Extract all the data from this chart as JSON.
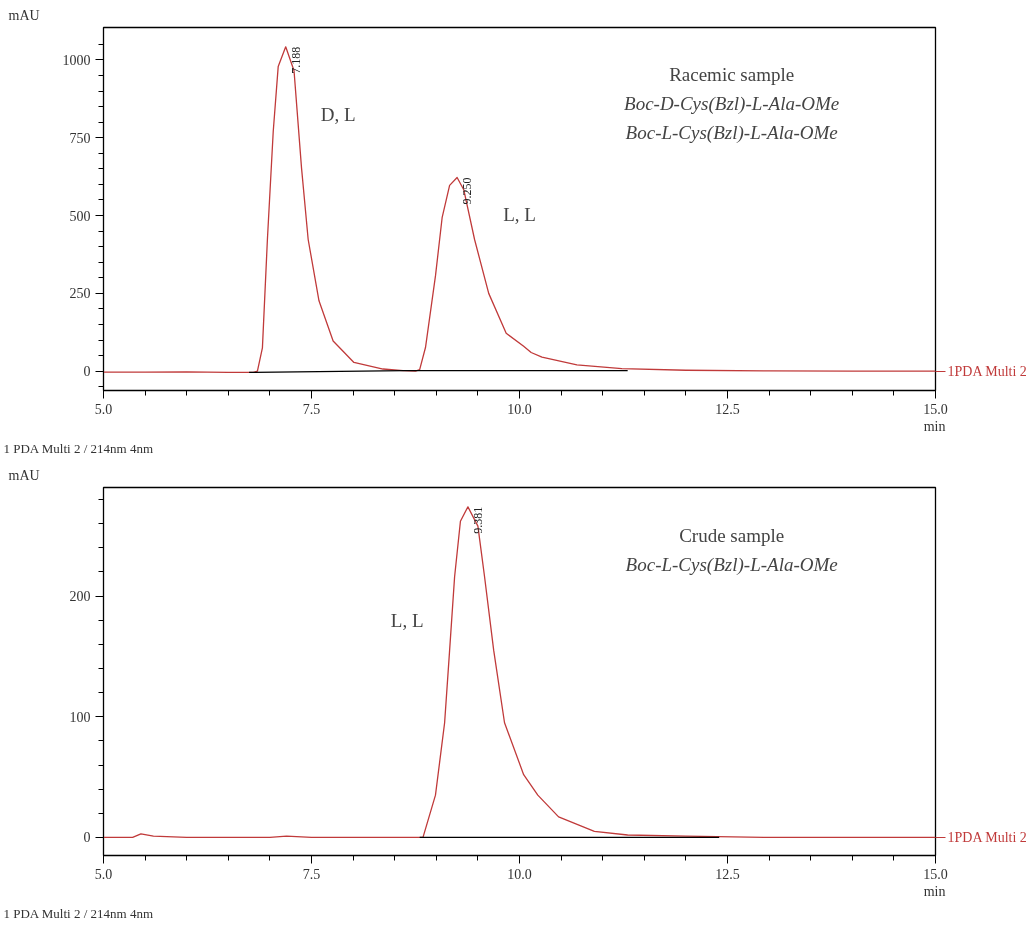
{
  "chart_data": [
    {
      "type": "line",
      "xlabel": "min",
      "ylabel": "mAU",
      "xlim": [
        5,
        15
      ],
      "ylim": [
        -62,
        1104
      ],
      "xticks": [
        {
          "value": 5,
          "label": "5.0"
        },
        {
          "value": 5.5,
          "label": null
        },
        {
          "value": 6.0,
          "label": null
        },
        {
          "value": 6.5,
          "label": null
        },
        {
          "value": 7.0,
          "label": null
        },
        {
          "value": 7.5,
          "label": "7.5"
        },
        {
          "value": 8.0,
          "label": null
        },
        {
          "value": 8.5,
          "label": null
        },
        {
          "value": 9.0,
          "label": null
        },
        {
          "value": 9.5,
          "label": null
        },
        {
          "value": 10,
          "label": "10.0"
        },
        {
          "value": 10.5,
          "label": null
        },
        {
          "value": 11.0,
          "label": null
        },
        {
          "value": 11.5,
          "label": null
        },
        {
          "value": 12.0,
          "label": null
        },
        {
          "value": 12.5,
          "label": "12.5"
        },
        {
          "value": 13.0,
          "label": null
        },
        {
          "value": 13.5,
          "label": null
        },
        {
          "value": 14.0,
          "label": null
        },
        {
          "value": 14.5,
          "label": null
        },
        {
          "value": 15,
          "label": "15.0"
        }
      ],
      "yticks": [
        {
          "value": -50,
          "label": null
        },
        0,
        {
          "value": 50,
          "label": null
        },
        {
          "value": 100,
          "label": null
        },
        {
          "value": 150,
          "label": null
        },
        {
          "value": 200,
          "label": null
        },
        250,
        {
          "value": 300,
          "label": null
        },
        {
          "value": 350,
          "label": null
        },
        {
          "value": 400,
          "label": null
        },
        {
          "value": 450,
          "label": null
        },
        500,
        {
          "value": 550,
          "label": null
        },
        {
          "value": 600,
          "label": null
        },
        {
          "value": 650,
          "label": null
        },
        {
          "value": 700,
          "label": null
        },
        750,
        {
          "value": 800,
          "label": null
        },
        {
          "value": 850,
          "label": null
        },
        {
          "value": 900,
          "label": null
        },
        {
          "value": 950,
          "label": null
        },
        1000,
        {
          "value": 1050,
          "label": null
        }
      ],
      "series": [
        {
          "name": "1PDA Multi 2",
          "color": "#c03a3a",
          "x": [
            5.0,
            5.5,
            6.0,
            6.5,
            6.8,
            6.85,
            6.91,
            6.97,
            7.04,
            7.1,
            7.19,
            7.29,
            7.38,
            7.46,
            7.59,
            7.76,
            8.01,
            8.36,
            8.6,
            8.75,
            8.8,
            8.87,
            8.99,
            9.07,
            9.16,
            9.25,
            9.33,
            9.46,
            9.63,
            9.84,
            10.05,
            10.14,
            10.27,
            10.69,
            11.23,
            12.0,
            13.0,
            14.0,
            15.0
          ],
          "values": [
            -3,
            -3,
            -2,
            -4,
            -4,
            0,
            75,
            423,
            770,
            979,
            1042,
            965,
            653,
            423,
            226,
            97,
            28,
            7,
            2,
            0,
            5,
            76,
            306,
            493,
            597,
            622,
            583,
            423,
            250,
            122,
            80,
            60,
            45,
            20,
            8,
            3,
            1,
            0,
            0
          ]
        },
        {
          "color": "#000000",
          "x": [
            6.75,
            8.62,
            11.3
          ],
          "values": [
            -4,
            2,
            2
          ]
        }
      ],
      "annotations": [
        {
          "text": "7.188",
          "x": 7.19,
          "y": 1042
        },
        {
          "text": "9.250",
          "x": 9.25,
          "y": 622
        },
        "D, L",
        "L, L",
        "Racemic sample",
        "Boc-D-Cys(Bzl)-L-Ala-OMe",
        "Boc-L-Cys(Bzl)-L-Ala-OMe",
        "1 PDA Multi 2 / 214nm 4nm"
      ]
    },
    {
      "type": "line",
      "xlabel": "min",
      "ylabel": "mAU",
      "xlim": [
        5,
        15
      ],
      "ylim": [
        -15,
        290
      ],
      "xticks": [
        {
          "value": 5,
          "label": "5.0"
        },
        {
          "value": 5.5,
          "label": null
        },
        {
          "value": 6.0,
          "label": null
        },
        {
          "value": 6.5,
          "label": null
        },
        {
          "value": 7.0,
          "label": null
        },
        {
          "value": 7.5,
          "label": "7.5"
        },
        {
          "value": 8.0,
          "label": null
        },
        {
          "value": 8.5,
          "label": null
        },
        {
          "value": 9.0,
          "label": null
        },
        {
          "value": 9.5,
          "label": null
        },
        {
          "value": 10,
          "label": "10.0"
        },
        {
          "value": 10.5,
          "label": null
        },
        {
          "value": 11.0,
          "label": null
        },
        {
          "value": 11.5,
          "label": null
        },
        {
          "value": 12.0,
          "label": null
        },
        {
          "value": 12.5,
          "label": "12.5"
        },
        {
          "value": 13.0,
          "label": null
        },
        {
          "value": 13.5,
          "label": null
        },
        {
          "value": 14.0,
          "label": null
        },
        {
          "value": 14.5,
          "label": null
        },
        {
          "value": 15,
          "label": "15.0"
        }
      ],
      "yticks": [
        0,
        {
          "value": 20,
          "label": null
        },
        {
          "value": 40,
          "label": null
        },
        {
          "value": 60,
          "label": null
        },
        {
          "value": 80,
          "label": null
        },
        100,
        {
          "value": 120,
          "label": null
        },
        {
          "value": 140,
          "label": null
        },
        {
          "value": 160,
          "label": null
        },
        {
          "value": 180,
          "label": null
        },
        200,
        {
          "value": 220,
          "label": null
        },
        {
          "value": 240,
          "label": null
        },
        {
          "value": 260,
          "label": null
        },
        {
          "value": 280,
          "label": null
        }
      ],
      "series": [
        {
          "name": "1PDA Multi 2",
          "color": "#c03a3a",
          "x": [
            5.0,
            5.35,
            5.45,
            5.6,
            6.0,
            7.0,
            7.2,
            7.5,
            8.0,
            8.84,
            8.99,
            9.1,
            9.16,
            9.22,
            9.29,
            9.38,
            9.5,
            9.58,
            9.69,
            9.82,
            10.05,
            10.22,
            10.47,
            10.9,
            11.3,
            12.0,
            13.0,
            15.0
          ],
          "values": [
            0,
            0,
            3,
            1,
            0,
            0,
            1,
            0,
            0,
            0,
            35,
            95,
            155,
            216,
            262,
            274,
            258,
            216,
            155,
            95,
            52,
            35,
            17,
            5,
            2,
            1,
            0,
            0
          ]
        },
        {
          "color": "#000000",
          "x": [
            8.8,
            12.4
          ],
          "values": [
            0,
            0
          ]
        }
      ],
      "annotations": [
        {
          "text": "9.381",
          "x": 9.38,
          "y": 274
        },
        "L, L",
        "Crude sample",
        "Boc-L-Cys(Bzl)-L-Ala-OMe",
        "1 PDA Multi 2 / 214nm 4nm"
      ]
    }
  ]
}
